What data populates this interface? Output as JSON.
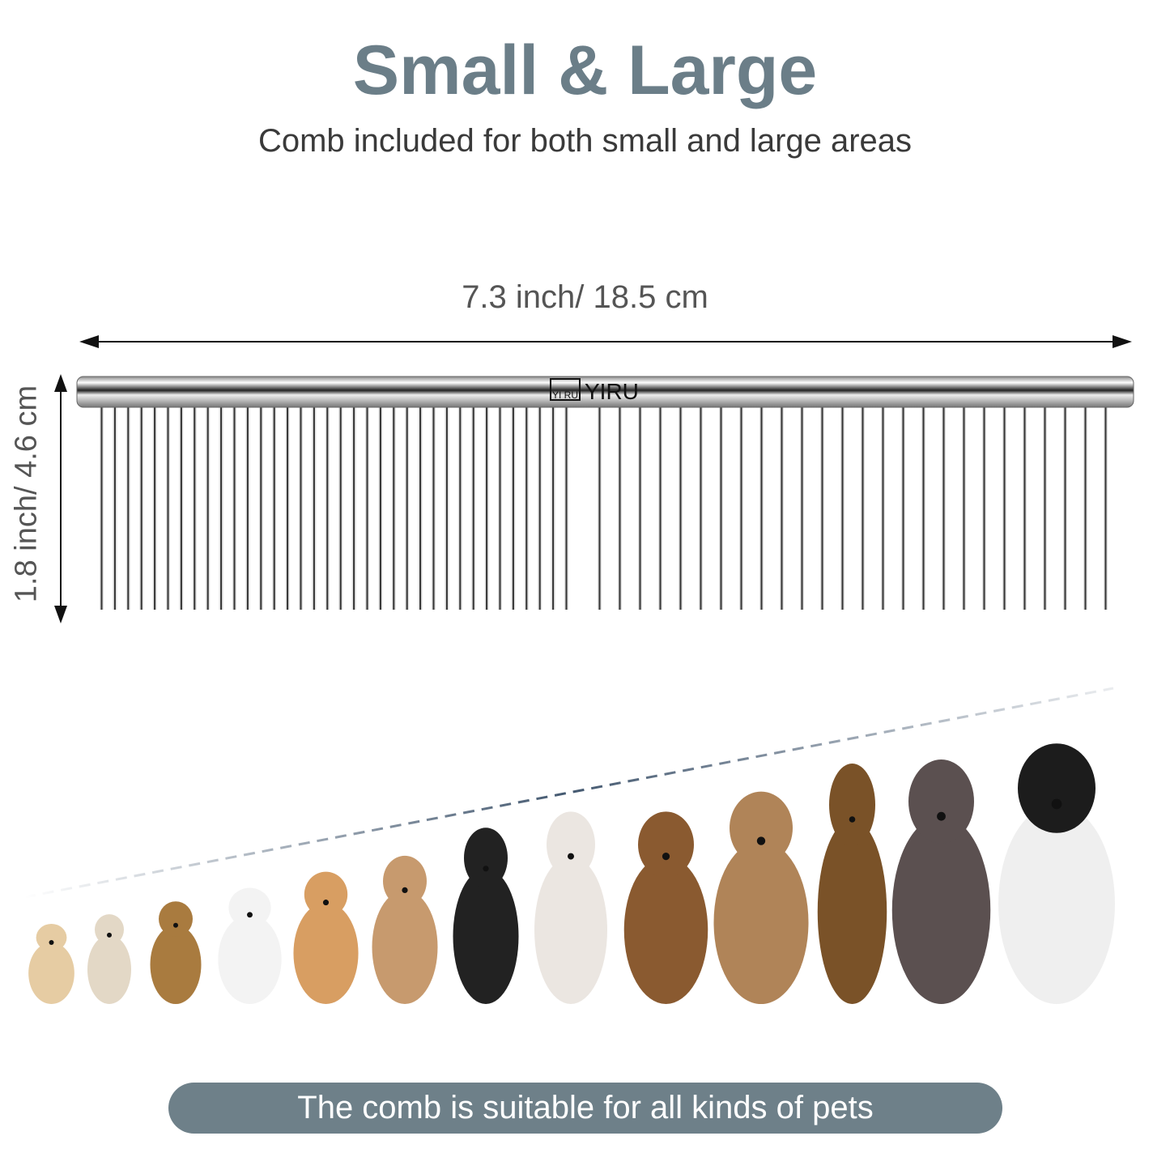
{
  "header": {
    "title": "Small & Large",
    "subtitle": "Comb included for both small and large areas"
  },
  "dimensions": {
    "width": "7.3 inch/ 18.5 cm",
    "height": "1.8 inch/ 4.6 cm"
  },
  "comb": {
    "brand_logo": "YIRU",
    "logo_box_text": "YI RU",
    "material_color": "#c8c8c8"
  },
  "pets": [
    {
      "breed_icon": "chihuahua",
      "color": "#e6cca3"
    },
    {
      "breed_icon": "shih-tzu",
      "color": "#e3d8c6"
    },
    {
      "breed_icon": "yorkshire-terrier",
      "color": "#a97b3f"
    },
    {
      "breed_icon": "japanese-spitz",
      "color": "#f3f3f3"
    },
    {
      "breed_icon": "corgi",
      "color": "#d89e62"
    },
    {
      "breed_icon": "toy-poodle",
      "color": "#c79a6e"
    },
    {
      "breed_icon": "border-collie",
      "color": "#222222"
    },
    {
      "breed_icon": "akita",
      "color": "#ebe6e1"
    },
    {
      "breed_icon": "shetland-sheepdog",
      "color": "#8a5a30"
    },
    {
      "breed_icon": "afghan-hound",
      "color": "#b08458"
    },
    {
      "breed_icon": "german-shepherd",
      "color": "#7a5228"
    },
    {
      "breed_icon": "standard-poodle",
      "color": "#5b5050"
    },
    {
      "breed_icon": "landseer",
      "color": "#efefef"
    }
  ],
  "footer": {
    "caption": "The comb is suitable for all kinds of pets"
  },
  "colors": {
    "title": "#6b7e88",
    "pill": "#6e8089",
    "dash": "#2f4660"
  }
}
